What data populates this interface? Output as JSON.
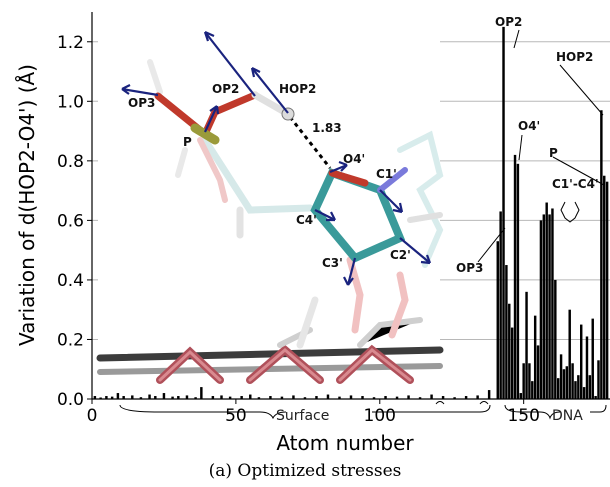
{
  "chart_data": {
    "type": "bar",
    "caption": "(a) Optimized stresses",
    "xlabel": "Atom number",
    "ylabel": "Variation of d(HOP2-O4') (Å)",
    "xlim": [
      0,
      180
    ],
    "ylim": [
      0,
      1.3
    ],
    "xticks": [
      "0",
      "50",
      "100",
      "150"
    ],
    "yticks": [
      "0.0",
      "0.2",
      "0.4",
      "0.6",
      "0.8",
      "1.0",
      "1.2"
    ],
    "grid": "horizontal",
    "region_labels": [
      "Surface",
      "DNA"
    ],
    "annotations": [
      "OP2",
      "O4'",
      "HOP2",
      "P",
      "C1'-C4'",
      "OP3"
    ],
    "inset_labels": [
      "OP3",
      "OP2",
      "HOP2",
      "P",
      "1.83",
      "O4'",
      "C1'",
      "C4'",
      "C3'",
      "C2'"
    ],
    "x": [
      1,
      3,
      5,
      7,
      9,
      11,
      14,
      17,
      20,
      22,
      25,
      28,
      30,
      33,
      36,
      38,
      42,
      45,
      48,
      52,
      55,
      58,
      62,
      66,
      70,
      74,
      78,
      82,
      86,
      90,
      94,
      98,
      102,
      106,
      110,
      114,
      118,
      122,
      126,
      130,
      134,
      138,
      141,
      142,
      143,
      144,
      145,
      146,
      147,
      148,
      149,
      150,
      151,
      152,
      153,
      154,
      155,
      156,
      157,
      158,
      159,
      160,
      161,
      162,
      163,
      164,
      165,
      166,
      167,
      168,
      169,
      170,
      171,
      172,
      173,
      174,
      175,
      176,
      177,
      178,
      179
    ],
    "values": [
      0.01,
      0.005,
      0.01,
      0.008,
      0.02,
      0.01,
      0.012,
      0.006,
      0.015,
      0.01,
      0.02,
      0.008,
      0.01,
      0.012,
      0.006,
      0.04,
      0.01,
      0.012,
      0.008,
      0.01,
      0.015,
      0.006,
      0.01,
      0.008,
      0.012,
      0.006,
      0.01,
      0.015,
      0.008,
      0.012,
      0.01,
      0.006,
      0.01,
      0.008,
      0.012,
      0.006,
      0.015,
      0.01,
      0.006,
      0.01,
      0.012,
      0.03,
      0.53,
      0.63,
      1.25,
      0.45,
      0.32,
      0.24,
      0.82,
      0.79,
      0.02,
      0.12,
      0.36,
      0.12,
      0.06,
      0.28,
      0.18,
      0.6,
      0.62,
      0.66,
      0.62,
      0.64,
      0.4,
      0.07,
      0.15,
      0.1,
      0.11,
      0.3,
      0.12,
      0.06,
      0.08,
      0.25,
      0.04,
      0.21,
      0.08,
      0.27,
      0.01,
      0.13,
      0.97,
      0.75,
      0.73
    ],
    "colors": {
      "bar": "#000000",
      "grid": "#b8b8b8",
      "arrow": "#1a237e",
      "bond": "#000000"
    }
  }
}
